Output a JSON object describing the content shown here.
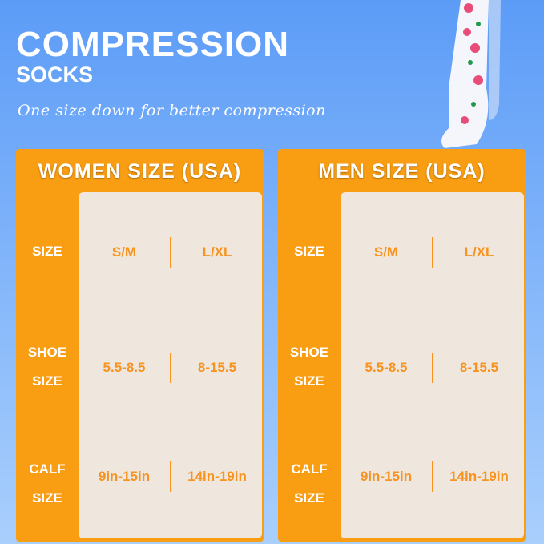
{
  "header": {
    "title": "COMPRESSION",
    "subtitle": "SOCKS",
    "tagline": "One size down for better compression"
  },
  "colors": {
    "orange": "#f99d12",
    "value_text": "#f7931e",
    "background": "#5c9cf7"
  },
  "panels": [
    {
      "title": "WOMEN SIZE (USA)",
      "rows": [
        {
          "label": "SIZE",
          "values": [
            "S/M",
            "L/XL"
          ]
        },
        {
          "label1": "SHOE",
          "label2": "SIZE",
          "values": [
            "5.5-8.5",
            "8-15.5"
          ]
        },
        {
          "label1": "CALF",
          "label2": "SIZE",
          "values": [
            "9in-15in",
            "14in-19in"
          ]
        }
      ]
    },
    {
      "title": "MEN SIZE (USA)",
      "rows": [
        {
          "label": "SIZE",
          "values": [
            "S/M",
            "L/XL"
          ]
        },
        {
          "label1": "SHOE",
          "label2": "SIZE",
          "values": [
            "5.5-8.5",
            "8-15.5"
          ]
        },
        {
          "label1": "CALF",
          "label2": "SIZE",
          "values": [
            "9in-15in",
            "14in-19in"
          ]
        }
      ]
    }
  ]
}
